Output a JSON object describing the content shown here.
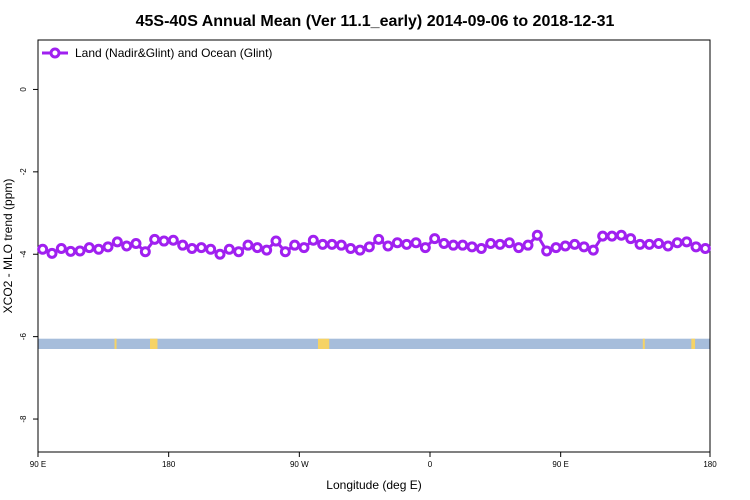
{
  "chart_data": {
    "type": "line",
    "title": "45S-40S Annual Mean (Ver 11.1_early)   2014-09-06 to 2018-12-31",
    "xlabel": "Longitude (deg E)",
    "ylabel": "XCO2 - MLO trend (ppm)",
    "xlim": [
      90,
      450
    ],
    "ylim": [
      -8.8,
      1.2
    ],
    "x_ticks": [
      {
        "value": 90,
        "label": "90 E"
      },
      {
        "value": 160,
        "label": "180"
      },
      {
        "value": 230,
        "label": "90 W"
      },
      {
        "value": 300,
        "label": "0"
      },
      {
        "value": 370,
        "label": "90 E"
      },
      {
        "value": 450,
        "label": "180"
      }
    ],
    "y_ticks": [
      {
        "value": 0,
        "label": "0"
      },
      {
        "value": -2,
        "label": "-2"
      },
      {
        "value": -4,
        "label": "-4"
      },
      {
        "value": -6,
        "label": "-6"
      },
      {
        "value": -8,
        "label": "-8"
      }
    ],
    "grid": false,
    "legend_position": "top-left",
    "series": [
      {
        "name": "Land (Nadir&Glint) and Ocean (Glint)",
        "color": "#a020f0",
        "x": [
          92.5,
          97.5,
          102.5,
          107.5,
          112.5,
          117.5,
          122.5,
          127.5,
          132.5,
          137.5,
          142.5,
          147.5,
          152.5,
          157.5,
          162.5,
          167.5,
          172.5,
          177.5,
          182.5,
          187.5,
          192.5,
          197.5,
          202.5,
          207.5,
          212.5,
          217.5,
          222.5,
          227.5,
          232.5,
          237.5,
          242.5,
          247.5,
          252.5,
          257.5,
          262.5,
          267.5,
          272.5,
          277.5,
          282.5,
          287.5,
          292.5,
          297.5,
          302.5,
          307.5,
          312.5,
          317.5,
          322.5,
          327.5,
          332.5,
          337.5,
          342.5,
          347.5,
          352.5,
          357.5,
          362.5,
          367.5,
          372.5,
          377.5,
          382.5,
          387.5,
          392.5,
          397.5,
          402.5,
          407.5,
          412.5,
          417.5,
          422.5,
          427.5,
          432.5,
          437.5,
          442.5,
          447.5
        ],
        "y": [
          -3.88,
          -3.98,
          -3.86,
          -3.93,
          -3.92,
          -3.84,
          -3.88,
          -3.82,
          -3.7,
          -3.8,
          -3.74,
          -3.94,
          -3.64,
          -3.68,
          -3.66,
          -3.78,
          -3.86,
          -3.84,
          -3.88,
          -4.0,
          -3.88,
          -3.94,
          -3.78,
          -3.84,
          -3.9,
          -3.68,
          -3.94,
          -3.78,
          -3.84,
          -3.66,
          -3.76,
          -3.76,
          -3.78,
          -3.86,
          -3.9,
          -3.82,
          -3.64,
          -3.8,
          -3.72,
          -3.76,
          -3.72,
          -3.84,
          -3.62,
          -3.74,
          -3.78,
          -3.78,
          -3.82,
          -3.86,
          -3.74,
          -3.76,
          -3.72,
          -3.84,
          -3.78,
          -3.54,
          -3.92,
          -3.84,
          -3.8,
          -3.76,
          -3.82,
          -3.9,
          -3.56,
          -3.56,
          -3.54,
          -3.62,
          -3.76,
          -3.76,
          -3.74,
          -3.8,
          -3.72,
          -3.7,
          -3.82,
          -3.86
        ]
      }
    ],
    "surface_band": {
      "y_range": [
        -6.3,
        -6.05
      ],
      "ocean_color": "#a6bddb",
      "land_color": "#f6d365",
      "land_segments": [
        [
          131,
          132
        ],
        [
          150,
          154
        ],
        [
          240,
          246
        ],
        [
          414,
          415
        ],
        [
          440,
          442
        ]
      ]
    }
  }
}
